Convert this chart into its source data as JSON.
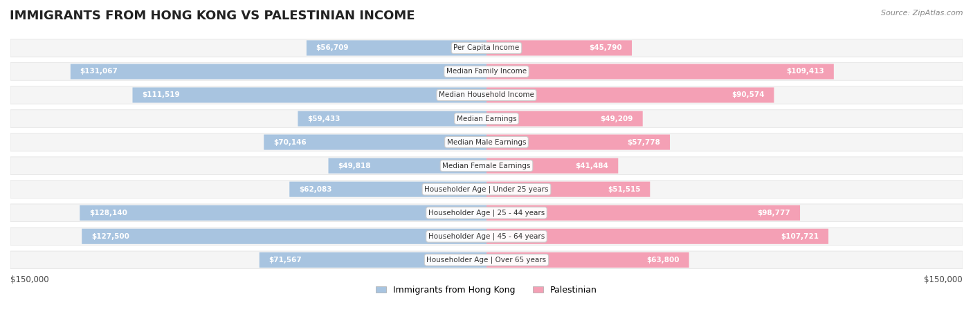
{
  "title": "IMMIGRANTS FROM HONG KONG VS PALESTINIAN INCOME",
  "source": "Source: ZipAtlas.com",
  "categories": [
    "Per Capita Income",
    "Median Family Income",
    "Median Household Income",
    "Median Earnings",
    "Median Male Earnings",
    "Median Female Earnings",
    "Householder Age | Under 25 years",
    "Householder Age | 25 - 44 years",
    "Householder Age | 45 - 64 years",
    "Householder Age | Over 65 years"
  ],
  "hk_values": [
    56709,
    131067,
    111519,
    59433,
    70146,
    49818,
    62083,
    128140,
    127500,
    71567
  ],
  "pal_values": [
    45790,
    109413,
    90574,
    49209,
    57778,
    41484,
    51515,
    98777,
    107721,
    63800
  ],
  "hk_labels": [
    "$56,709",
    "$131,067",
    "$111,519",
    "$59,433",
    "$70,146",
    "$49,818",
    "$62,083",
    "$128,140",
    "$127,500",
    "$71,567"
  ],
  "pal_labels": [
    "$45,790",
    "$109,413",
    "$90,574",
    "$49,209",
    "$57,778",
    "$41,484",
    "$51,515",
    "$98,777",
    "$107,721",
    "$63,800"
  ],
  "hk_color": "#a8c4e0",
  "pal_color": "#f4a0b5",
  "hk_color_dark": "#6fa8d0",
  "pal_color_dark": "#f07090",
  "hk_label_color_inside": "#ffffff",
  "hk_label_color_outside": "#666666",
  "pal_label_color_inside": "#ffffff",
  "pal_label_color_outside": "#666666",
  "max_value": 150000,
  "background_color": "#ffffff",
  "row_bg_color": "#f0f0f0",
  "legend_hk": "Immigrants from Hong Kong",
  "legend_pal": "Palestinian",
  "xlabel_left": "$150,000",
  "xlabel_right": "$150,000"
}
